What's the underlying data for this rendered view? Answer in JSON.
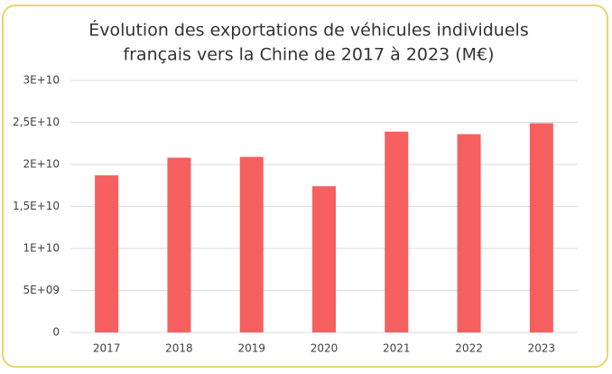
{
  "chart_data": {
    "type": "bar",
    "title": [
      "Évolution des exportations de véhicules individuels",
      "français vers la Chine de 2017 à 2023 (M€)"
    ],
    "categories": [
      "2017",
      "2018",
      "2019",
      "2020",
      "2021",
      "2022",
      "2023"
    ],
    "values": [
      18700000000,
      20800000000,
      20900000000,
      17400000000,
      23900000000,
      23600000000,
      24900000000
    ],
    "color": "#f55f5f",
    "ylim": [
      0,
      30000000000
    ],
    "yticks": [
      0,
      {
        "value": 5000000000,
        "label": "5E+09"
      },
      {
        "value": 10000000000,
        "label": "1E+10"
      },
      {
        "value": 15000000000,
        "label": "1,5E+10"
      },
      {
        "value": 20000000000,
        "label": "2E+10"
      },
      {
        "value": 25000000000,
        "label": "2,5E+10"
      },
      {
        "value": 30000000000,
        "label": "3E+10"
      }
    ],
    "grid": true
  }
}
